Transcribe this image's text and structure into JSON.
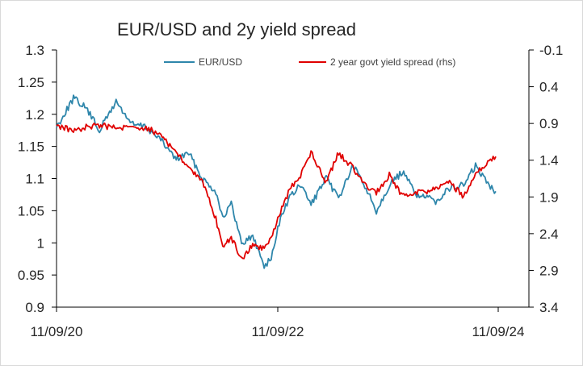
{
  "chart_data": {
    "type": "line",
    "title": "EUR/USD and 2y yield spread",
    "x_ticks": [
      "11/09/20",
      "11/09/22",
      "11/09/24"
    ],
    "left_axis": {
      "min": 0.9,
      "max": 1.3,
      "ticks": [
        "1.3",
        "1.25",
        "1.2",
        "1.15",
        "1.1",
        "1.05",
        "1",
        "0.95",
        "0.9"
      ]
    },
    "right_axis": {
      "min": -0.1,
      "max": 3.4,
      "inverted": true,
      "ticks": [
        "-0.1",
        "0.4",
        "0.9",
        "1.4",
        "1.9",
        "2.4",
        "2.9",
        "3.4"
      ]
    },
    "legend_position": "top",
    "series": [
      {
        "name": "EUR/USD",
        "axis": "left",
        "color": "#2e86ab",
        "x": [
          "2020-11-09",
          "2021-01-04",
          "2021-02-15",
          "2021-03-31",
          "2021-05-25",
          "2021-07-15",
          "2021-09-01",
          "2021-10-20",
          "2021-12-10",
          "2022-01-20",
          "2022-03-07",
          "2022-04-20",
          "2022-05-13",
          "2022-06-10",
          "2022-07-14",
          "2022-08-20",
          "2022-09-27",
          "2022-10-20",
          "2022-11-20",
          "2022-12-20",
          "2023-01-25",
          "2023-03-01",
          "2023-04-20",
          "2023-05-31",
          "2023-07-18",
          "2023-08-30",
          "2023-10-03",
          "2023-11-15",
          "2023-12-28",
          "2024-02-14",
          "2024-04-16",
          "2024-06-01",
          "2024-07-18",
          "2024-08-26",
          "2024-10-01",
          "2024-11-01"
        ],
        "y": [
          1.18,
          1.225,
          1.21,
          1.175,
          1.22,
          1.185,
          1.18,
          1.16,
          1.13,
          1.14,
          1.1,
          1.08,
          1.04,
          1.06,
          1.0,
          1.01,
          0.965,
          0.975,
          1.04,
          1.07,
          1.09,
          1.06,
          1.1,
          1.07,
          1.12,
          1.085,
          1.05,
          1.09,
          1.11,
          1.075,
          1.065,
          1.085,
          1.09,
          1.12,
          1.095,
          1.08
        ]
      },
      {
        "name": "2 year govt yield spread (rhs)",
        "axis": "right",
        "color": "#e00000",
        "x": [
          "2020-11-09",
          "2021-01-04",
          "2021-02-15",
          "2021-03-31",
          "2021-05-25",
          "2021-07-15",
          "2021-09-01",
          "2021-10-20",
          "2021-12-10",
          "2022-01-20",
          "2022-03-07",
          "2022-04-20",
          "2022-05-13",
          "2022-06-10",
          "2022-07-14",
          "2022-08-20",
          "2022-09-27",
          "2022-10-20",
          "2022-11-20",
          "2022-12-20",
          "2023-01-25",
          "2023-03-01",
          "2023-04-20",
          "2023-05-31",
          "2023-07-18",
          "2023-08-30",
          "2023-10-03",
          "2023-11-15",
          "2023-12-28",
          "2024-02-14",
          "2024-04-16",
          "2024-06-01",
          "2024-07-18",
          "2024-08-26",
          "2024-10-01",
          "2024-11-01"
        ],
        "y": [
          0.92,
          1.0,
          0.95,
          0.93,
          0.95,
          0.96,
          0.96,
          1.05,
          1.3,
          1.5,
          1.7,
          2.2,
          2.6,
          2.45,
          2.75,
          2.55,
          2.6,
          2.45,
          2.1,
          1.8,
          1.6,
          1.3,
          1.7,
          1.3,
          1.5,
          1.75,
          1.85,
          1.6,
          1.9,
          1.85,
          1.8,
          1.7,
          1.9,
          1.6,
          1.45,
          1.35
        ]
      }
    ]
  }
}
